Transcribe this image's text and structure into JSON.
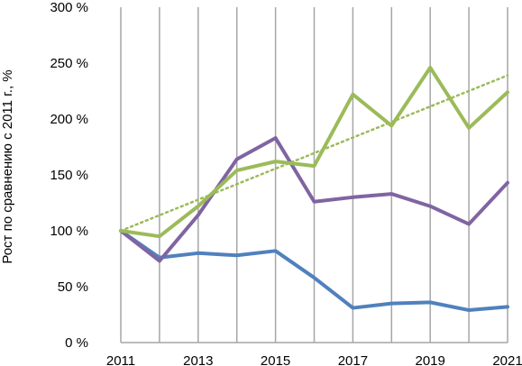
{
  "chart_data": {
    "type": "line",
    "ylabel": "Рост по сравнению  с 2011 г., %",
    "x": [
      2011,
      2012,
      2013,
      2014,
      2015,
      2016,
      2017,
      2018,
      2019,
      2020,
      2021
    ],
    "x_tick_labels": [
      "2011",
      "2013",
      "2015",
      "2017",
      "2019",
      "2021"
    ],
    "x_tick_values": [
      2011,
      2013,
      2015,
      2017,
      2019,
      2021
    ],
    "y_tick_labels": [
      "0 %",
      "50 %",
      "100 %",
      "150 %",
      "200 %",
      "250 %",
      "300 %"
    ],
    "y_tick_values": [
      0,
      50,
      100,
      150,
      200,
      250,
      300
    ],
    "ylim": [
      0,
      300
    ],
    "xlim": [
      2011,
      2021
    ],
    "grid": "vertical lines at each year",
    "series": [
      {
        "color": "#4f81bd",
        "values": [
          100,
          76,
          80,
          78,
          82,
          58,
          31,
          35,
          36,
          29,
          32
        ]
      },
      {
        "color": "#8064a2",
        "values": [
          100,
          73,
          114,
          164,
          183,
          126,
          130,
          133,
          122,
          106,
          143
        ]
      },
      {
        "color": "#9bbb59",
        "values": [
          100,
          95,
          122,
          154,
          162,
          158,
          222,
          194,
          246,
          192,
          224
        ]
      }
    ],
    "trendline": {
      "style": "dotted",
      "color": "#9bbb59",
      "from": [
        2011,
        100
      ],
      "to": [
        2021,
        239
      ]
    }
  }
}
